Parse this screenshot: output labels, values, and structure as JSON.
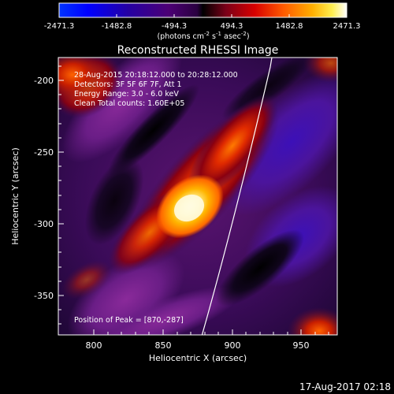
{
  "colorbar": {
    "tick_labels": [
      "-2471.3",
      "-1482.8",
      "-494.3",
      "494.3",
      "1482.8",
      "2471.3"
    ],
    "units_main": "(photons cm",
    "units_exp1": "-2",
    "units_mid1": " s",
    "units_exp2": "-1",
    "units_mid2": " asec",
    "units_exp3": "-2",
    "units_end": ")"
  },
  "image": {
    "title": "Reconstructed RHESSI Image",
    "info_lines": [
      "28-Aug-2015 20:18:12.000 to 20:28:12.000",
      "Detectors: 3F 5F 6F 7F, Att 1",
      "Energy Range: 3.0 - 6.0 keV",
      "Clean      Total counts: 1.60E+05"
    ],
    "peak_label": "Position of Peak = [870,-287]",
    "xlabel": "Heliocentric X (arcsec)",
    "ylabel": "Heliocentric Y (arcsec)",
    "x_ticks": [
      "800",
      "850",
      "900",
      "950"
    ],
    "y_ticks": [
      "-200",
      "-250",
      "-300",
      "-350"
    ],
    "footer_timestamp": "17-Aug-2017 02:18"
  },
  "colors": {
    "background": "#000000",
    "text": "#ffffff",
    "peak_core": "#ffffe8",
    "limb_line": "#ffffff"
  }
}
